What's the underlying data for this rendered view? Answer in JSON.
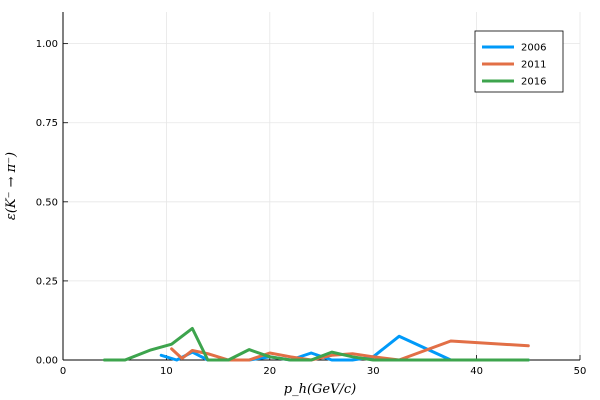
{
  "chart_data": {
    "type": "line",
    "xlabel": "p_h(GeV/c)",
    "ylabel": "ε(K⁻ → π⁻)",
    "xlim": [
      0,
      50
    ],
    "ylim": [
      0,
      1.1
    ],
    "x_ticks": [
      0,
      10,
      20,
      30,
      40,
      50
    ],
    "y_ticks": [
      0.0,
      0.25,
      0.5,
      0.75,
      1.0
    ],
    "x_tick_labels": [
      "0",
      "10",
      "20",
      "30",
      "40",
      "50"
    ],
    "y_tick_labels": [
      "0.00",
      "0.25",
      "0.50",
      "0.75",
      "1.00"
    ],
    "grid": true,
    "legend_position": "top-right",
    "series": [
      {
        "name": "2006",
        "color": "#009af9",
        "x": [
          9.5,
          11,
          12.5,
          14,
          16,
          18,
          20,
          22,
          24,
          26,
          28,
          30,
          32.5,
          37.5,
          45
        ],
        "y": [
          0.015,
          0.0,
          0.025,
          0.0,
          0.0,
          0.0,
          0.01,
          0.0,
          0.022,
          0.0,
          0.0,
          0.01,
          0.075,
          0.0,
          0.0
        ]
      },
      {
        "name": "2011",
        "color": "#e26f46",
        "x": [
          10.5,
          11.5,
          12.5,
          14,
          16,
          18,
          20,
          22,
          24,
          26,
          28,
          30,
          32.5,
          37.5,
          45
        ],
        "y": [
          0.035,
          0.005,
          0.03,
          0.02,
          0.0,
          0.0,
          0.022,
          0.01,
          0.0,
          0.015,
          0.02,
          0.01,
          0.0,
          0.06,
          0.045
        ]
      },
      {
        "name": "2016",
        "color": "#3da44d",
        "x": [
          4,
          6,
          8.5,
          10.5,
          12.5,
          14,
          16,
          18,
          20,
          22,
          24,
          26,
          28,
          30,
          32.5,
          37.5,
          45
        ],
        "y": [
          0.0,
          0.0,
          0.032,
          0.05,
          0.1,
          0.0,
          0.0,
          0.033,
          0.01,
          0.0,
          0.0,
          0.025,
          0.01,
          0.0,
          0.0,
          0.0,
          0.0
        ]
      }
    ]
  }
}
